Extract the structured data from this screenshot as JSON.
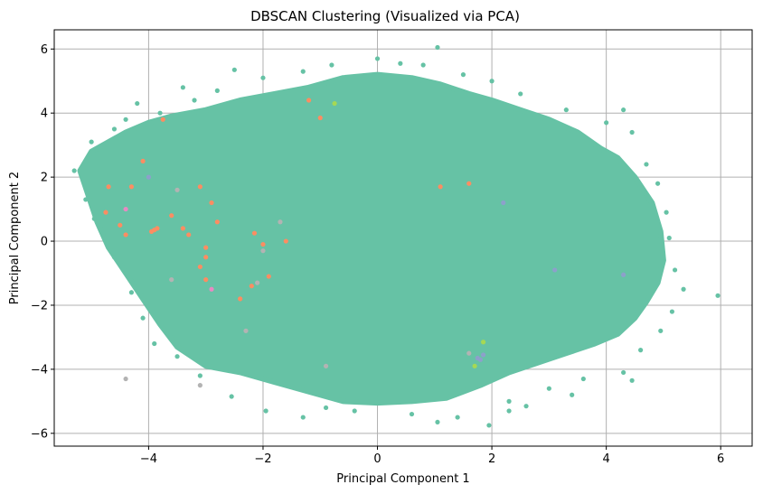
{
  "chart_data": {
    "type": "scatter",
    "title": "DBSCAN Clustering (Visualized via PCA)",
    "xlabel": "Principal Component 1",
    "ylabel": "Principal Component 2",
    "xlim": [
      -5.65,
      6.55
    ],
    "ylim": [
      -6.4,
      6.6
    ],
    "xticks": [
      -4,
      -2,
      0,
      2,
      4,
      6
    ],
    "xtick_labels": [
      "−4",
      "−2",
      "0",
      "2",
      "4",
      "6"
    ],
    "yticks": [
      -6,
      -4,
      -2,
      0,
      2,
      4,
      6
    ],
    "ytick_labels": [
      "−6",
      "−4",
      "−2",
      "0",
      "2",
      "4",
      "6"
    ],
    "grid": true,
    "colors": {
      "main_cluster": "#66c2a5",
      "orange_cluster": "#fc8d62",
      "blue_cluster": "#8da0cb",
      "lime_cluster": "#a6d854",
      "gray_cluster": "#b3b3b3",
      "pink_cluster": "#e78ac3",
      "grid": "#b0b0b0"
    },
    "main_cloud": {
      "color": "#66c2a5",
      "boundary": [
        [
          -5.2,
          2.2
        ],
        [
          -5.0,
          2.8
        ],
        [
          -4.7,
          3.1
        ],
        [
          -4.4,
          3.4
        ],
        [
          -4.0,
          3.7
        ],
        [
          -3.6,
          3.9
        ],
        [
          -3.0,
          4.1
        ],
        [
          -2.4,
          4.4
        ],
        [
          -1.8,
          4.6
        ],
        [
          -1.2,
          4.8
        ],
        [
          -0.6,
          5.1
        ],
        [
          0.0,
          5.2
        ],
        [
          0.6,
          5.1
        ],
        [
          1.1,
          4.9
        ],
        [
          1.6,
          4.6
        ],
        [
          2.0,
          4.4
        ],
        [
          2.5,
          4.1
        ],
        [
          3.0,
          3.8
        ],
        [
          3.5,
          3.4
        ],
        [
          3.9,
          2.9
        ],
        [
          4.2,
          2.6
        ],
        [
          4.5,
          2.0
        ],
        [
          4.8,
          1.2
        ],
        [
          4.95,
          0.3
        ],
        [
          5.0,
          -0.6
        ],
        [
          4.9,
          -1.3
        ],
        [
          4.7,
          -1.9
        ],
        [
          4.5,
          -2.4
        ],
        [
          4.2,
          -2.9
        ],
        [
          3.8,
          -3.2
        ],
        [
          3.3,
          -3.5
        ],
        [
          2.8,
          -3.8
        ],
        [
          2.3,
          -4.1
        ],
        [
          1.8,
          -4.5
        ],
        [
          1.2,
          -4.9
        ],
        [
          0.6,
          -5.0
        ],
        [
          0.0,
          -5.05
        ],
        [
          -0.6,
          -5.0
        ],
        [
          -1.2,
          -4.7
        ],
        [
          -1.8,
          -4.4
        ],
        [
          -2.4,
          -4.1
        ],
        [
          -3.0,
          -3.9
        ],
        [
          -3.5,
          -3.3
        ],
        [
          -3.8,
          -2.6
        ],
        [
          -4.1,
          -1.8
        ],
        [
          -4.4,
          -1.0
        ],
        [
          -4.7,
          -0.2
        ],
        [
          -4.9,
          0.6
        ],
        [
          -5.05,
          1.4
        ],
        [
          -5.2,
          2.2
        ]
      ],
      "outliers": [
        [
          -5.3,
          2.2
        ],
        [
          -5.0,
          3.1
        ],
        [
          -4.6,
          3.5
        ],
        [
          -4.4,
          3.8
        ],
        [
          -3.8,
          4.0
        ],
        [
          -3.2,
          4.4
        ],
        [
          -3.4,
          4.8
        ],
        [
          -2.5,
          5.35
        ],
        [
          -2.0,
          5.1
        ],
        [
          -1.3,
          5.3
        ],
        [
          -0.8,
          5.5
        ],
        [
          0.0,
          5.7
        ],
        [
          0.4,
          5.55
        ],
        [
          1.05,
          6.05
        ],
        [
          1.5,
          5.2
        ],
        [
          2.0,
          5.0
        ],
        [
          2.5,
          4.6
        ],
        [
          3.3,
          4.1
        ],
        [
          4.0,
          3.7
        ],
        [
          4.3,
          4.1
        ],
        [
          4.45,
          3.4
        ],
        [
          4.7,
          2.4
        ],
        [
          4.9,
          1.8
        ],
        [
          5.05,
          0.9
        ],
        [
          5.1,
          0.1
        ],
        [
          5.2,
          -0.9
        ],
        [
          5.35,
          -1.5
        ],
        [
          5.95,
          -1.7
        ],
        [
          5.15,
          -2.2
        ],
        [
          4.95,
          -2.8
        ],
        [
          4.6,
          -3.4
        ],
        [
          4.3,
          -4.1
        ],
        [
          4.45,
          -4.35
        ],
        [
          3.6,
          -4.3
        ],
        [
          3.4,
          -4.8
        ],
        [
          2.6,
          -5.15
        ],
        [
          2.3,
          -5.0
        ],
        [
          1.95,
          -5.75
        ],
        [
          1.4,
          -5.5
        ],
        [
          1.05,
          -5.65
        ],
        [
          0.6,
          -5.4
        ],
        [
          -0.4,
          -5.3
        ],
        [
          -1.3,
          -5.5
        ],
        [
          -1.95,
          -5.3
        ],
        [
          -2.55,
          -4.85
        ],
        [
          -3.1,
          -4.2
        ],
        [
          -3.5,
          -3.6
        ],
        [
          -3.9,
          -3.2
        ],
        [
          -4.1,
          -2.4
        ],
        [
          -4.3,
          -1.6
        ],
        [
          -4.6,
          -0.5
        ],
        [
          -4.8,
          0.2
        ],
        [
          -4.95,
          0.7
        ],
        [
          -5.1,
          1.3
        ],
        [
          -4.2,
          4.3
        ],
        [
          2.3,
          -5.3
        ],
        [
          -0.9,
          -5.2
        ],
        [
          3.0,
          -4.6
        ],
        [
          -2.8,
          4.7
        ],
        [
          0.8,
          5.5
        ]
      ]
    },
    "minor_clusters": [
      {
        "color": "#fc8d62",
        "points": [
          [
            -4.7,
            1.7
          ],
          [
            -4.3,
            1.7
          ],
          [
            -4.1,
            2.5
          ],
          [
            -4.75,
            0.9
          ],
          [
            -4.5,
            0.5
          ],
          [
            -4.4,
            0.2
          ],
          [
            -3.95,
            0.3
          ],
          [
            -3.85,
            0.4
          ],
          [
            -3.6,
            0.8
          ],
          [
            -3.4,
            0.4
          ],
          [
            -3.1,
            1.7
          ],
          [
            -2.9,
            1.2
          ],
          [
            -3.3,
            0.2
          ],
          [
            -3.0,
            -0.2
          ],
          [
            -3.0,
            -0.5
          ],
          [
            -3.1,
            -0.8
          ],
          [
            -3.0,
            -1.2
          ],
          [
            -2.8,
            0.6
          ],
          [
            -2.15,
            0.25
          ],
          [
            -1.6,
            0.0
          ],
          [
            -2.0,
            -0.1
          ],
          [
            -3.75,
            3.8
          ],
          [
            -1.2,
            4.4
          ],
          [
            -1.0,
            3.85
          ],
          [
            1.6,
            1.8
          ],
          [
            1.1,
            1.7
          ],
          [
            -2.4,
            -1.8
          ],
          [
            -2.2,
            -1.4
          ],
          [
            -1.9,
            -1.1
          ],
          [
            -3.9,
            0.35
          ]
        ]
      },
      {
        "color": "#b3b3b3",
        "points": [
          [
            -3.6,
            -1.2
          ],
          [
            -2.3,
            -2.8
          ],
          [
            -2.1,
            -1.3
          ],
          [
            -1.7,
            0.6
          ],
          [
            -3.5,
            1.6
          ],
          [
            -4.4,
            -4.3
          ],
          [
            -3.1,
            -4.5
          ],
          [
            -0.9,
            -3.9
          ],
          [
            -2.0,
            -0.3
          ],
          [
            1.6,
            -3.5
          ]
        ]
      },
      {
        "color": "#8da0cb",
        "points": [
          [
            1.75,
            -3.65
          ],
          [
            1.8,
            -3.7
          ],
          [
            4.3,
            -1.05
          ],
          [
            1.85,
            -3.55
          ],
          [
            2.2,
            1.2
          ],
          [
            -4.0,
            2.0
          ],
          [
            3.1,
            -0.9
          ]
        ]
      },
      {
        "color": "#a6d854",
        "points": [
          [
            -0.75,
            4.3
          ],
          [
            1.85,
            -3.15
          ],
          [
            1.7,
            -3.9
          ]
        ]
      },
      {
        "color": "#e78ac3",
        "points": [
          [
            -4.4,
            1.0
          ],
          [
            -2.9,
            -1.5
          ]
        ]
      }
    ]
  }
}
